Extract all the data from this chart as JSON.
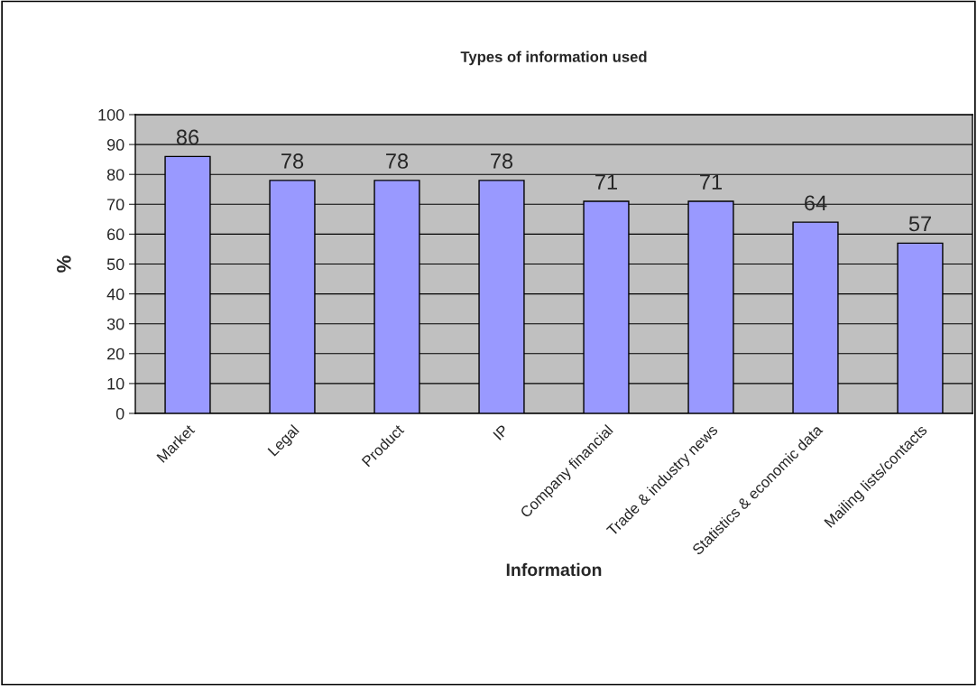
{
  "chart_data": {
    "type": "bar",
    "title": "Types of information used",
    "xlabel": "Information",
    "ylabel": "%",
    "categories": [
      "Market",
      "Legal",
      "Product",
      "IP",
      "Company financial",
      "Trade & industry news",
      "Statistics & economic data",
      "Mailing lists/contacts"
    ],
    "values": [
      86,
      78,
      78,
      78,
      71,
      71,
      64,
      57
    ],
    "color": "#9999ff",
    "ylim": [
      0,
      100
    ],
    "yticks": [
      0,
      10,
      20,
      30,
      40,
      50,
      60,
      70,
      80,
      90,
      100
    ],
    "grid": "y",
    "data_labels": true
  }
}
